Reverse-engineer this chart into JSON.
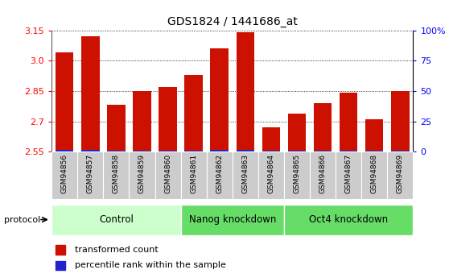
{
  "title": "GDS1824 / 1441686_at",
  "samples": [
    "GSM94856",
    "GSM94857",
    "GSM94858",
    "GSM94859",
    "GSM94860",
    "GSM94861",
    "GSM94862",
    "GSM94863",
    "GSM94864",
    "GSM94865",
    "GSM94866",
    "GSM94867",
    "GSM94868",
    "GSM94869"
  ],
  "transformed_count": [
    3.04,
    3.12,
    2.78,
    2.85,
    2.87,
    2.93,
    3.06,
    3.14,
    2.67,
    2.74,
    2.79,
    2.84,
    2.71,
    2.85
  ],
  "percentile_rank_pct": [
    8,
    8,
    4,
    4,
    5,
    5,
    8,
    8,
    3,
    3,
    5,
    5,
    3,
    3
  ],
  "ylim": [
    2.55,
    3.15
  ],
  "yticks": [
    2.55,
    2.7,
    2.85,
    3.0,
    3.15
  ],
  "right_yticks": [
    0,
    25,
    50,
    75,
    100
  ],
  "bar_color_red": "#cc1100",
  "bar_color_blue": "#2222cc",
  "bar_width": 0.7,
  "group_control_color": "#ccffcc",
  "group_nanog_color": "#66dd66",
  "group_oct4_color": "#66dd66",
  "groups": [
    {
      "label": "Control",
      "start": 0,
      "end": 5
    },
    {
      "label": "Nanog knockdown",
      "start": 5,
      "end": 9
    },
    {
      "label": "Oct4 knockdown",
      "start": 9,
      "end": 14
    }
  ],
  "protocol_label": "protocol",
  "legend_red": "transformed count",
  "legend_blue": "percentile rank within the sample",
  "tick_bg_color": "#cccccc",
  "plot_bg_color": "#ffffff",
  "percentile_bar_height": 0.012
}
